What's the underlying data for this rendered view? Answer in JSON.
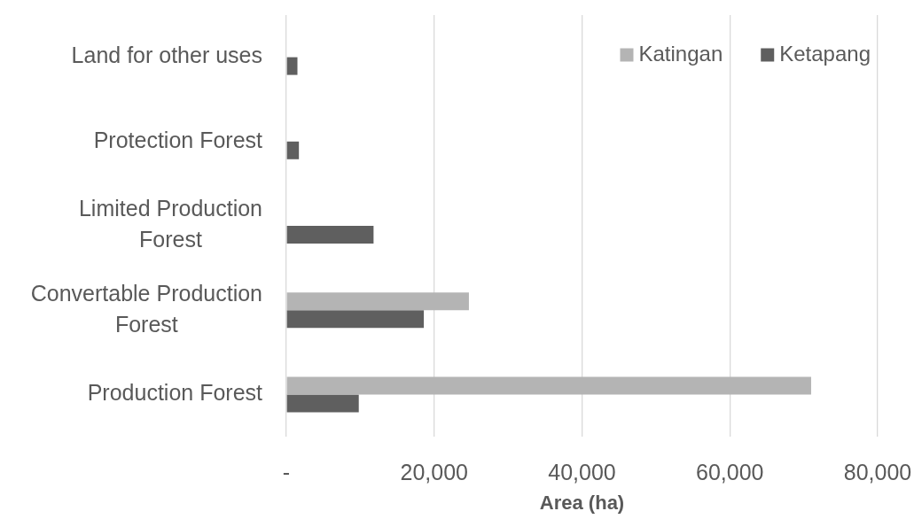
{
  "chart_data": {
    "type": "bar",
    "orientation": "horizontal",
    "categories": [
      "Land for other uses",
      "Protection Forest",
      "Limited Production Forest",
      "Convertable Production Forest",
      "Production Forest"
    ],
    "series": [
      {
        "name": "Katingan",
        "color": "#b4b4b4",
        "values": [
          null,
          null,
          null,
          24700,
          71000
        ]
      },
      {
        "name": "Ketapang",
        "color": "#5f5f5f",
        "values": [
          1500,
          1700,
          11800,
          18600,
          9800
        ]
      }
    ],
    "xlabel": "Area (ha)",
    "xlim": [
      0,
      80000
    ],
    "xticks": [
      {
        "value": 0,
        "label": "-"
      },
      {
        "value": 20000,
        "label": "20,000"
      },
      {
        "value": 40000,
        "label": "40,000"
      },
      {
        "value": 60000,
        "label": "60,000"
      },
      {
        "value": 80000,
        "label": "80,000"
      }
    ],
    "grid": "x",
    "legend": "top right"
  }
}
